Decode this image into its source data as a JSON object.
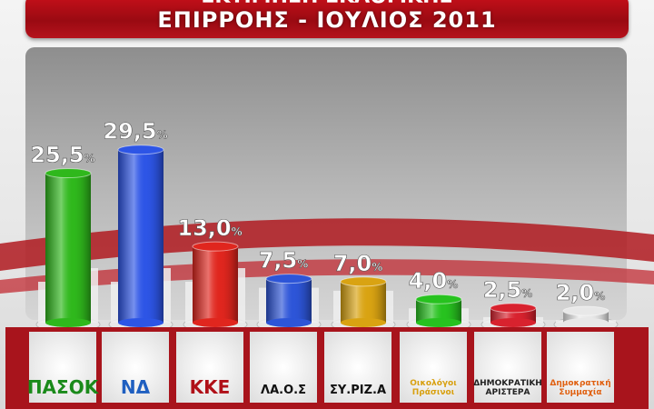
{
  "header": {
    "line1": "ΕΚΤΙΜΗΣΗ ΕΚΛΟΓΙΚΗΣ",
    "line2": "ΕΠΙΡΡΟΗΣ - ΙΟΥΛΙΟΣ 2011"
  },
  "chart_data": {
    "type": "bar",
    "title": "ΕΠΙΡΡΟΗΣ - ΙΟΥΛΙΟΣ 2011",
    "categories": [
      "ΠΑΣΟΚ",
      "ΝΔ",
      "ΚΚΕ",
      "ΛΑ.Ο.Σ",
      "ΣΥ.ΡΙΖ.Α",
      "Οικολόγοι Πράσινοι",
      "Δημοκρατική Αριστερά",
      "Δημοκρατική Συμμαχία"
    ],
    "values": [
      25.5,
      29.5,
      13.0,
      7.5,
      7.0,
      4.0,
      2.5,
      2.0
    ],
    "labels": [
      "25,5",
      "29,5",
      "13,0",
      "7,5",
      "7,0",
      "4,0",
      "2,5",
      "2,0"
    ],
    "unit": "%",
    "colors": [
      "#2fb81c",
      "#2d55e6",
      "#e0261e",
      "#2d55d8",
      "#d9a312",
      "#27c21f",
      "#d8222e",
      "#e8e8e8"
    ],
    "ylim": [
      0,
      30
    ],
    "grid": false
  },
  "logos": [
    {
      "text": "ΠΑΣΟΚ",
      "color": "#1a8a1a"
    },
    {
      "text": "ΝΔ",
      "color": "#1f5fc0"
    },
    {
      "text": "ΚΚΕ",
      "color": "#b01018"
    },
    {
      "text": "ΛΑ.Ο.Σ",
      "color": "#111111"
    },
    {
      "text": "ΣΥ.ΡΙΖ.Α",
      "color": "#111111"
    },
    {
      "text": "Οικολόγοι Πράσινοι",
      "color": "#d8a010"
    },
    {
      "text": "ΔΗΜΟΚΡΑΤΙΚΗ ΑΡΙΣΤΕΡΑ",
      "color": "#222222"
    },
    {
      "text": "Δημοκρατική Συμμαχία",
      "color": "#e06010"
    }
  ]
}
